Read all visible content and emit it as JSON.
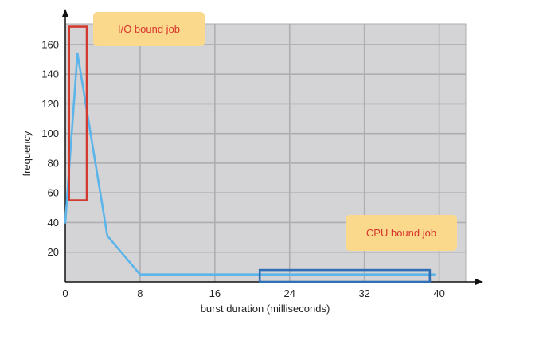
{
  "chart_data": {
    "type": "line",
    "title": "",
    "xlabel": "burst duration (milliseconds)",
    "ylabel": "frequency",
    "xlim": [
      0,
      42
    ],
    "ylim": [
      0,
      175
    ],
    "x_ticks": [
      0,
      8,
      16,
      24,
      32,
      40
    ],
    "y_ticks": [
      20,
      40,
      60,
      80,
      100,
      120,
      140,
      160
    ],
    "grid": true,
    "series": [
      {
        "points": [
          [
            0,
            40
          ],
          [
            1.3,
            154
          ],
          [
            4.5,
            31
          ],
          [
            8,
            5
          ],
          [
            16,
            5
          ],
          [
            24,
            5
          ],
          [
            32,
            5
          ],
          [
            39.5,
            5
          ]
        ]
      }
    ],
    "annotations": [
      {
        "text": "I/O bound job",
        "x_range": [
          0.4,
          2.3
        ],
        "y_range": [
          55,
          172
        ]
      },
      {
        "text": "CPU bound job",
        "x_range": [
          20.8,
          39
        ],
        "y_range": [
          0,
          8
        ]
      }
    ]
  },
  "colors": {
    "plot_background": "#d4d4d6",
    "grid": "#aeaeb2",
    "line": "#5bb4ea",
    "io_box": "#d2392f",
    "cpu_box": "#2f6fb5",
    "label_bg": "#fbd98c",
    "label_text": "#d9342b"
  }
}
